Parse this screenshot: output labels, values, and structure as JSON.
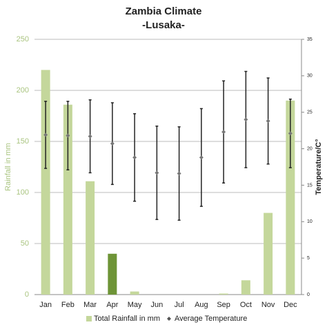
{
  "chart_data": {
    "type": "bar_errorbar",
    "title": "Zambia Climate",
    "subtitle": "-Lusaka-",
    "categories": [
      "Jan",
      "Feb",
      "Mar",
      "Apr",
      "May",
      "Jun",
      "Jul",
      "Aug",
      "Sep",
      "Oct",
      "Nov",
      "Dec"
    ],
    "y_label": "Rainfall in mm",
    "y2_label": "Temperature/C°",
    "ylim": [
      0,
      250
    ],
    "yticks": [
      0,
      50,
      100,
      150,
      200,
      250
    ],
    "y2lim": [
      0,
      35
    ],
    "y2ticks": [
      0,
      5,
      10,
      15,
      20,
      25,
      30,
      35
    ],
    "grid": true,
    "legend": "bottom",
    "series": [
      {
        "name": "Total Rainfall in mm",
        "color": "#c4d79b",
        "point_colors": [
          "#c4d79b",
          "#c4d79b",
          "#c4d79b",
          "#6e9437",
          "#c4d79b",
          "#c4d79b",
          "#c4d79b",
          "#c4d79b",
          "#c4d79b",
          "#c4d79b",
          "#c4d79b",
          "#c4d79b"
        ],
        "values": [
          220,
          186,
          111,
          40,
          3,
          0,
          0,
          0,
          1,
          14,
          80,
          190
        ]
      },
      {
        "name": "Average Temperature",
        "color": "#222222",
        "axis": "y2",
        "values": [
          21.9,
          21.8,
          21.7,
          20.7,
          18.8,
          16.7,
          16.6,
          18.8,
          22.3,
          24.0,
          23.8,
          22.1
        ],
        "error": [
          4.6,
          4.7,
          5.0,
          5.6,
          6.0,
          6.4,
          6.4,
          6.7,
          7.0,
          6.6,
          5.9,
          4.7
        ]
      }
    ]
  }
}
